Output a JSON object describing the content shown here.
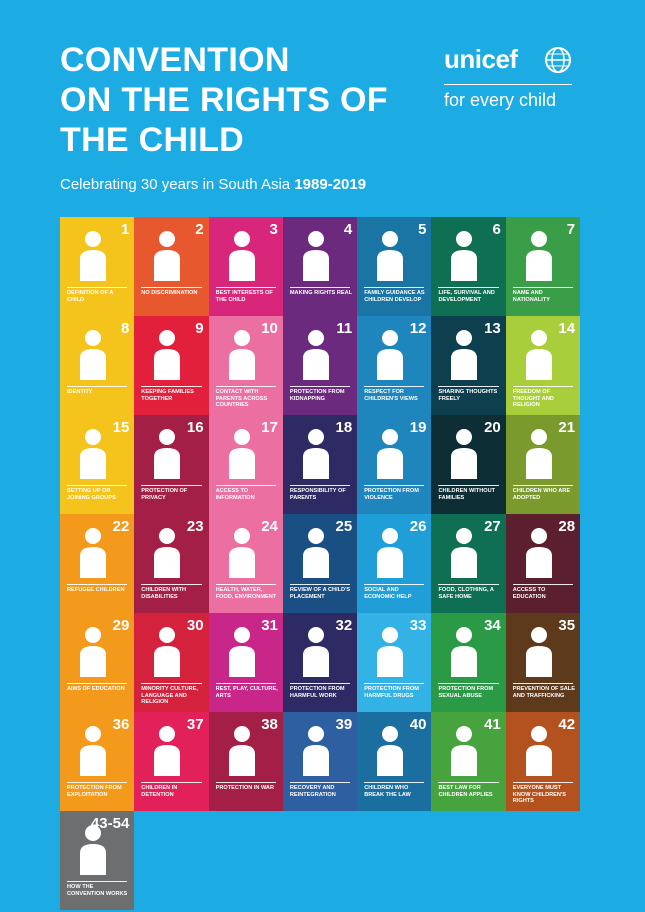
{
  "header": {
    "title_lines": [
      "CONVENTION",
      "ON THE RIGHTS OF",
      "THE CHILD"
    ],
    "subtitle": "Celebrating 30 years in South Asia",
    "years": "1989-2019"
  },
  "logo": {
    "word": "unicef",
    "tagline": "for every child"
  },
  "tiles": [
    {
      "num": "1",
      "label": "Definition of a child",
      "color": "#F4C31C",
      "icon": "child-icon"
    },
    {
      "num": "2",
      "label": "No discrimination",
      "color": "#E8582E",
      "icon": "two-children-icon"
    },
    {
      "num": "3",
      "label": "Best interests of the child",
      "color": "#D8267A",
      "icon": "adult-child-icon"
    },
    {
      "num": "4",
      "label": "Making rights real",
      "color": "#6B2A7D",
      "icon": "document-icon"
    },
    {
      "num": "5",
      "label": "Family guidance as children develop",
      "color": "#1A74A4",
      "icon": "house-family-icon"
    },
    {
      "num": "6",
      "label": "Life, survival and development",
      "color": "#0F6F53",
      "icon": "heart-pulse-icon"
    },
    {
      "num": "7",
      "label": "Name and nationality",
      "color": "#3A9D47",
      "icon": "flag-icon"
    },
    {
      "num": "8",
      "label": "Identity",
      "color": "#F4C31C",
      "icon": "id-card-icon"
    },
    {
      "num": "9",
      "label": "Keeping families together",
      "color": "#E2203B",
      "icon": "family-hearts-icon"
    },
    {
      "num": "10",
      "label": "Contact with parents across countries",
      "color": "#EC6FA1",
      "icon": "globe-family-icon"
    },
    {
      "num": "11",
      "label": "Protection from kidnapping",
      "color": "#6B2A7D",
      "icon": "hug-icon"
    },
    {
      "num": "12",
      "label": "Respect for children's views",
      "color": "#1F86BD",
      "icon": "speech-icon"
    },
    {
      "num": "13",
      "label": "Sharing thoughts freely",
      "color": "#0E3F4F",
      "icon": "megaphone-icon"
    },
    {
      "num": "14",
      "label": "Freedom of thought and religion",
      "color": "#A9CE3B",
      "icon": "symbols-icon"
    },
    {
      "num": "15",
      "label": "Setting up or joining groups",
      "color": "#F4C31C",
      "icon": "group-sign-icon"
    },
    {
      "num": "16",
      "label": "Protection of privacy",
      "color": "#A31F45",
      "icon": "keyhole-icon"
    },
    {
      "num": "17",
      "label": "Access to information",
      "color": "#EC6FA1",
      "icon": "satellite-icon"
    },
    {
      "num": "18",
      "label": "Responsibility of parents",
      "color": "#2E2A64",
      "icon": "hands-icon"
    },
    {
      "num": "19",
      "label": "Protection from violence",
      "color": "#1F86BD",
      "icon": "shield-child-icon"
    },
    {
      "num": "20",
      "label": "Children without families",
      "color": "#0E2E36",
      "icon": "lone-child-icon"
    },
    {
      "num": "21",
      "label": "Children who are adopted",
      "color": "#7A9A2E",
      "icon": "adopt-heart-icon"
    },
    {
      "num": "22",
      "label": "Refugee children",
      "color": "#F39A1C",
      "icon": "running-child-icon"
    },
    {
      "num": "23",
      "label": "Children with disabilities",
      "color": "#A31F45",
      "icon": "wheelchair-icon"
    },
    {
      "num": "24",
      "label": "Health, water, food, environment",
      "color": "#EC6FA1",
      "icon": "health-icon"
    },
    {
      "num": "25",
      "label": "Review of a child's placement",
      "color": "#1A4F84",
      "icon": "checklist-icon"
    },
    {
      "num": "26",
      "label": "Social and economic help",
      "color": "#1F9ED8",
      "icon": "hand-child-icon"
    },
    {
      "num": "27",
      "label": "Food, clothing, a safe home",
      "color": "#0F6F53",
      "icon": "home-needs-icon"
    },
    {
      "num": "28",
      "label": "Access to education",
      "color": "#5C1F2F",
      "icon": "graduate-icon"
    },
    {
      "num": "29",
      "label": "Aims of education",
      "color": "#F39A1C",
      "icon": "thought-icon"
    },
    {
      "num": "30",
      "label": "Minority culture, language and religion",
      "color": "#D4213C",
      "icon": "culture-icon"
    },
    {
      "num": "31",
      "label": "Rest, play, culture, arts",
      "color": "#C9268A",
      "icon": "music-icon"
    },
    {
      "num": "32",
      "label": "Protection from harmful work",
      "color": "#2E2A64",
      "icon": "harmful-work-icon"
    },
    {
      "num": "33",
      "label": "Protection from harmful drugs",
      "color": "#33B2E5",
      "icon": "drugs-icon"
    },
    {
      "num": "34",
      "label": "Protection from sexual abuse",
      "color": "#2B9A47",
      "icon": "stop-hand-icon"
    },
    {
      "num": "35",
      "label": "Prevention of sale and trafficking",
      "color": "#5E3A1C",
      "icon": "price-tag-icon"
    },
    {
      "num": "36",
      "label": "Protection from exploitation",
      "color": "#F39A1C",
      "icon": "shield-icon"
    },
    {
      "num": "37",
      "label": "Children in detention",
      "color": "#E2205A",
      "icon": "bars-icon"
    },
    {
      "num": "38",
      "label": "Protection in war",
      "color": "#A31F45",
      "icon": "target-icon"
    },
    {
      "num": "39",
      "label": "Recovery and reintegration",
      "color": "#2E5FA0",
      "icon": "bandage-icon"
    },
    {
      "num": "40",
      "label": "Children who break the law",
      "color": "#1A6FA0",
      "icon": "scales-icon"
    },
    {
      "num": "41",
      "label": "Best law for children applies",
      "color": "#46A33E",
      "icon": "podium-icon"
    },
    {
      "num": "42",
      "label": "Everyone must know children's rights",
      "color": "#B3521E",
      "icon": "globe-crowd-icon"
    },
    {
      "num": "43-54",
      "label": "How the convention works",
      "color": "#6D6E70",
      "icon": "book-icon"
    }
  ]
}
